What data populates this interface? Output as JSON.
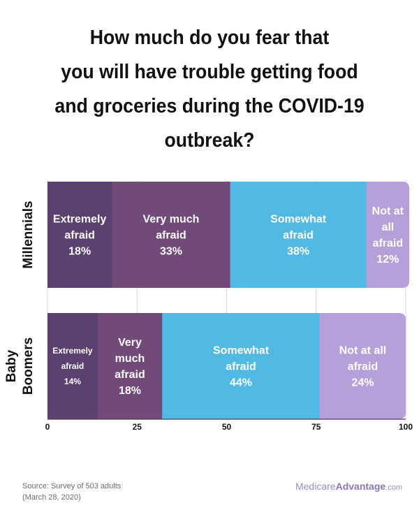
{
  "title_lines": [
    "How much do you fear that",
    "you will have trouble getting food",
    "and groceries during the COVID-19",
    "outbreak?"
  ],
  "chart_data": {
    "type": "bar",
    "orientation": "horizontal",
    "stacked": true,
    "title": "How much do you fear that you will have trouble getting food and groceries during the COVID-19 outbreak?",
    "categories": [
      {
        "id": "millennials",
        "label_lines": [
          "Millennials"
        ]
      },
      {
        "id": "baby-boomers",
        "label_lines": [
          "Baby",
          "Boomers"
        ]
      }
    ],
    "series": [
      {
        "name": "Extremely afraid",
        "color": "#5a416f",
        "values": [
          18,
          14
        ],
        "labels": [
          [
            "Extremely",
            "afraid",
            "18%"
          ],
          [
            "Extremely",
            "afraid",
            "14%"
          ]
        ]
      },
      {
        "name": "Very much afraid",
        "color": "#724a7a",
        "values": [
          33,
          18
        ],
        "labels": [
          [
            "Very much",
            "afraid",
            "33%"
          ],
          [
            "Very",
            "much",
            "afraid",
            "18%"
          ]
        ]
      },
      {
        "name": "Somewhat afraid",
        "color": "#50b9e4",
        "values": [
          38,
          44
        ],
        "labels": [
          [
            "Somewhat",
            "afraid",
            "38%"
          ],
          [
            "Somewhat",
            "afraid",
            "44%"
          ]
        ]
      },
      {
        "name": "Not at all afraid",
        "color": "#b5a0d9",
        "values": [
          12,
          24
        ],
        "labels": [
          [
            "Not at",
            "all",
            "afraid",
            "12%"
          ],
          [
            "Not at all",
            "afraid",
            "24%"
          ]
        ]
      }
    ],
    "xlim": [
      0,
      100
    ],
    "xticks": [
      0,
      25,
      50,
      75,
      100
    ],
    "grid": true
  },
  "footer": {
    "source_line1": "Source: Survey of 503 adults",
    "source_line2": "(March 28, 2020)",
    "brand_part1": "Medicare",
    "brand_part2": "Advantage",
    "brand_part3": ".com"
  }
}
